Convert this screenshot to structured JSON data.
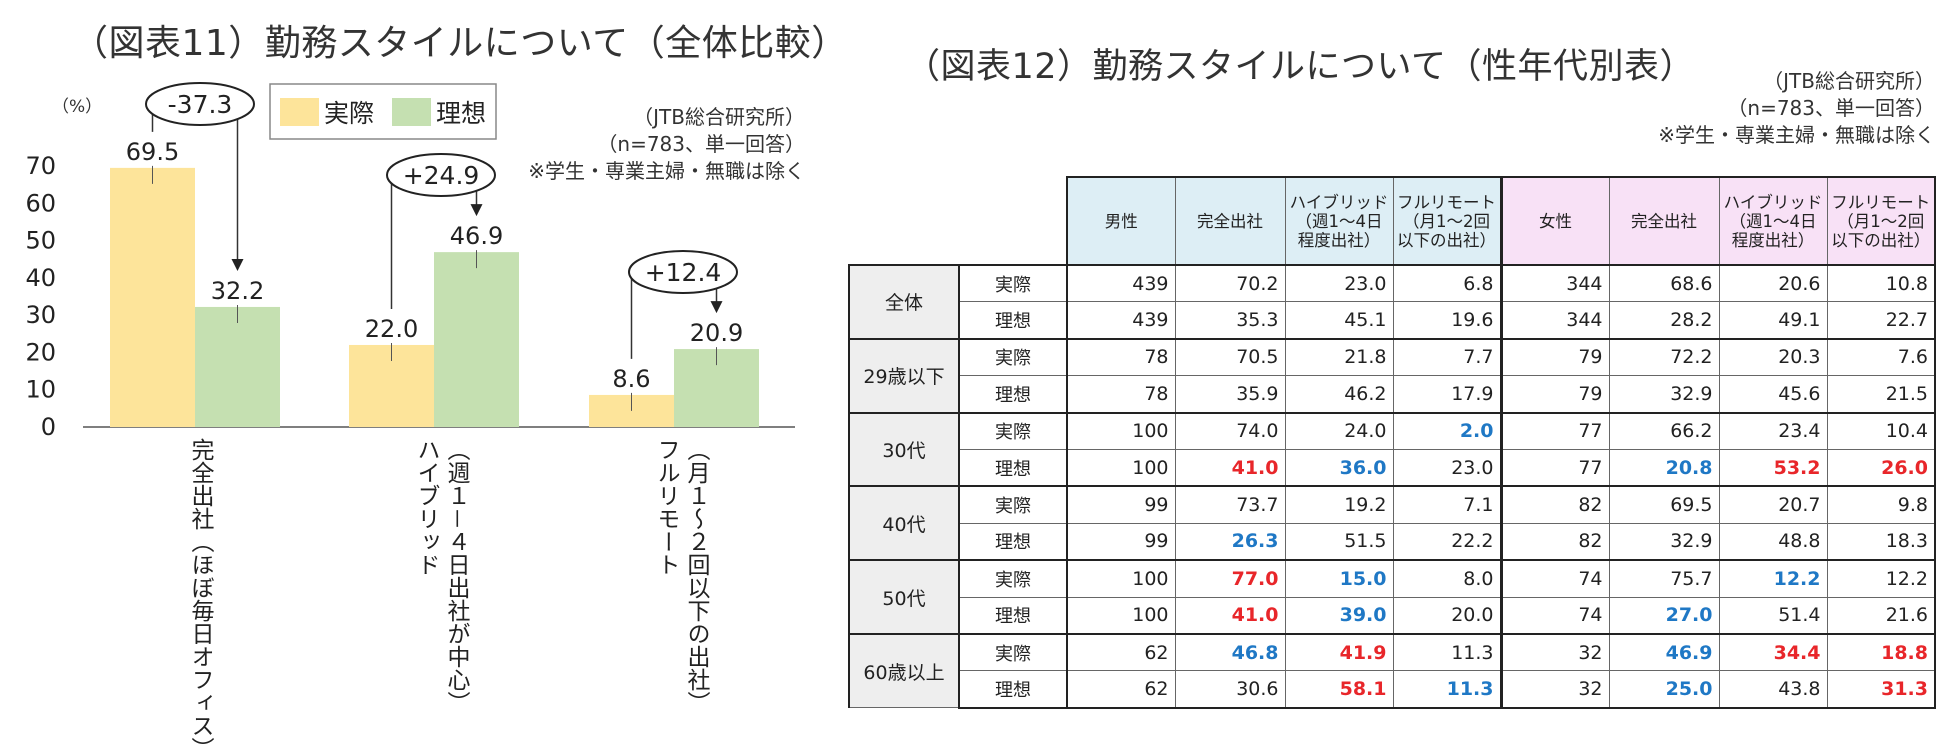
{
  "left_panel": {
    "title": "（図表11）勤務スタイルについて（全体比較）",
    "note": [
      "（JTB総合研究所）",
      "（n=783、単一回答）",
      "※学生・専業主婦・無職は除く"
    ]
  },
  "right_panel": {
    "title": "（図表12）勤務スタイルについて（性年代別表）",
    "note": [
      "（JTB総合研究所）",
      "（n=783、単一回答）",
      "※学生・専業主婦・無職は除く"
    ]
  },
  "chart_data": {
    "type": "bar",
    "title": "（図表11）勤務スタイルについて（全体比較）",
    "ylabel": "（%）",
    "xlabel": "",
    "ylim": [
      0,
      70
    ],
    "yticks": [
      "0",
      "10",
      "20",
      "30",
      "40",
      "50",
      "60",
      "70"
    ],
    "categories": [
      [
        "完全出社（ほぼ毎日オフィス）"
      ],
      [
        "ハイブリッド",
        "（週１－４日出社が中心）"
      ],
      [
        "フルリモート",
        "（月１～２回以下の出社）"
      ]
    ],
    "series": [
      {
        "name": "実際",
        "color": "#fde49a",
        "values": [
          69.5,
          22.0,
          8.6
        ],
        "labels": [
          "69.5",
          "22.0",
          "8.6"
        ]
      },
      {
        "name": "理想",
        "color": "#c5e0b1",
        "values": [
          32.2,
          46.9,
          20.9
        ],
        "labels": [
          "32.2",
          "46.9",
          "20.9"
        ]
      }
    ],
    "annotations": [
      "-37.3",
      "+24.9",
      "+12.4"
    ],
    "legend_position": "top"
  },
  "table": {
    "headers": {
      "male": [
        "男性",
        "完全出社",
        "ハイブリッド（週1～4日程度出社）",
        "フルリモート（月1～2回以下の出社）"
      ],
      "female": [
        "女性",
        "完全出社",
        "ハイブリッド（週1～4日程度出社）",
        "フルリモート（月1～2回以下の出社）"
      ]
    },
    "groups": [
      {
        "name": "全体",
        "rows": [
          {
            "type": "実際",
            "m": [
              "439",
              "70.2",
              "23.0",
              "6.8"
            ],
            "f": [
              "344",
              "68.6",
              "20.6",
              "10.8"
            ],
            "mc": [
              "",
              "",
              "",
              ""
            ],
            "fc": [
              "",
              "",
              "",
              ""
            ]
          },
          {
            "type": "理想",
            "m": [
              "439",
              "35.3",
              "45.1",
              "19.6"
            ],
            "f": [
              "344",
              "28.2",
              "49.1",
              "22.7"
            ],
            "mc": [
              "",
              "",
              "",
              ""
            ],
            "fc": [
              "",
              "",
              "",
              ""
            ]
          }
        ]
      },
      {
        "name": "29歳以下",
        "rows": [
          {
            "type": "実際",
            "m": [
              "78",
              "70.5",
              "21.8",
              "7.7"
            ],
            "f": [
              "79",
              "72.2",
              "20.3",
              "7.6"
            ],
            "mc": [
              "",
              "",
              "",
              ""
            ],
            "fc": [
              "",
              "",
              "",
              ""
            ]
          },
          {
            "type": "理想",
            "m": [
              "78",
              "35.9",
              "46.2",
              "17.9"
            ],
            "f": [
              "79",
              "32.9",
              "45.6",
              "21.5"
            ],
            "mc": [
              "",
              "",
              "",
              ""
            ],
            "fc": [
              "",
              "",
              "",
              ""
            ]
          }
        ]
      },
      {
        "name": "30代",
        "rows": [
          {
            "type": "実際",
            "m": [
              "100",
              "74.0",
              "24.0",
              "2.0"
            ],
            "f": [
              "77",
              "66.2",
              "23.4",
              "10.4"
            ],
            "mc": [
              "",
              "",
              "",
              "blue"
            ],
            "fc": [
              "",
              "",
              "",
              ""
            ]
          },
          {
            "type": "理想",
            "m": [
              "100",
              "41.0",
              "36.0",
              "23.0"
            ],
            "f": [
              "77",
              "20.8",
              "53.2",
              "26.0"
            ],
            "mc": [
              "",
              "red",
              "blue",
              ""
            ],
            "fc": [
              "",
              "blue",
              "red",
              "red"
            ]
          }
        ]
      },
      {
        "name": "40代",
        "rows": [
          {
            "type": "実際",
            "m": [
              "99",
              "73.7",
              "19.2",
              "7.1"
            ],
            "f": [
              "82",
              "69.5",
              "20.7",
              "9.8"
            ],
            "mc": [
              "",
              "",
              "",
              ""
            ],
            "fc": [
              "",
              "",
              "",
              ""
            ]
          },
          {
            "type": "理想",
            "m": [
              "99",
              "26.3",
              "51.5",
              "22.2"
            ],
            "f": [
              "82",
              "32.9",
              "48.8",
              "18.3"
            ],
            "mc": [
              "",
              "blue",
              "",
              ""
            ],
            "fc": [
              "",
              "",
              "",
              ""
            ]
          }
        ]
      },
      {
        "name": "50代",
        "rows": [
          {
            "type": "実際",
            "m": [
              "100",
              "77.0",
              "15.0",
              "8.0"
            ],
            "f": [
              "74",
              "75.7",
              "12.2",
              "12.2"
            ],
            "mc": [
              "",
              "red",
              "blue",
              ""
            ],
            "fc": [
              "",
              "",
              "blue",
              ""
            ]
          },
          {
            "type": "理想",
            "m": [
              "100",
              "41.0",
              "39.0",
              "20.0"
            ],
            "f": [
              "74",
              "27.0",
              "51.4",
              "21.6"
            ],
            "mc": [
              "",
              "red",
              "blue",
              ""
            ],
            "fc": [
              "",
              "blue",
              "",
              ""
            ]
          }
        ]
      },
      {
        "name": "60歳以上",
        "rows": [
          {
            "type": "実際",
            "m": [
              "62",
              "46.8",
              "41.9",
              "11.3"
            ],
            "f": [
              "32",
              "46.9",
              "34.4",
              "18.8"
            ],
            "mc": [
              "",
              "blue",
              "red",
              ""
            ],
            "fc": [
              "",
              "blue",
              "red",
              "red"
            ]
          },
          {
            "type": "理想",
            "m": [
              "62",
              "30.6",
              "58.1",
              "11.3"
            ],
            "f": [
              "32",
              "25.0",
              "43.8",
              "31.3"
            ],
            "mc": [
              "",
              "",
              "red",
              "blue"
            ],
            "fc": [
              "",
              "blue",
              "",
              "red"
            ]
          }
        ]
      }
    ]
  }
}
